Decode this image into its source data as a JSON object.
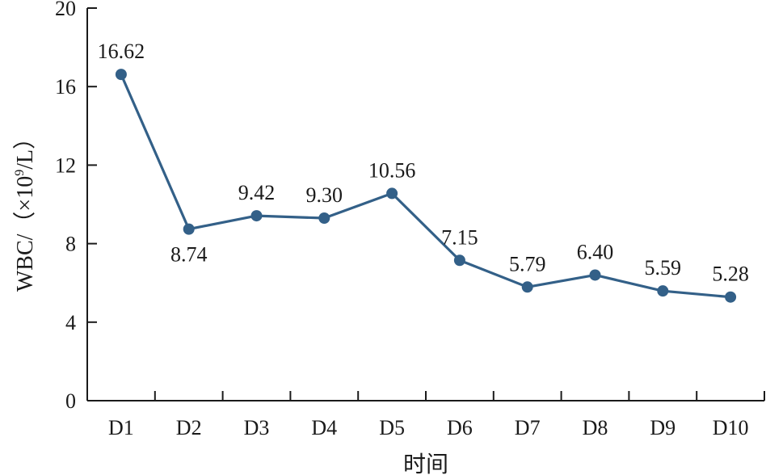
{
  "chart_data": {
    "type": "line",
    "categories": [
      "D1",
      "D2",
      "D3",
      "D4",
      "D5",
      "D6",
      "D7",
      "D8",
      "D9",
      "D10"
    ],
    "series": [
      {
        "values": [
          16.62,
          8.74,
          9.42,
          9.3,
          10.56,
          7.15,
          5.79,
          6.4,
          5.59,
          5.28
        ],
        "labels": [
          "16.62",
          "8.74",
          "9.42",
          "9.30",
          "10.56",
          "7.15",
          "5.79",
          "6.40",
          "5.59",
          "5.28"
        ],
        "color": "#336088"
      }
    ],
    "xlabel": "时间",
    "ylabel_prefix": "WBC/（×10",
    "ylabel_sup": "9",
    "ylabel_suffix": "/L）",
    "ylim": [
      0,
      20
    ],
    "yticks": [
      0,
      4,
      8,
      12,
      16,
      20
    ],
    "yticklabels": [
      "0",
      "4",
      "8",
      "12",
      "16",
      "20"
    ],
    "grid": false,
    "legend": "none",
    "axis_color": "#1a1a1a"
  }
}
